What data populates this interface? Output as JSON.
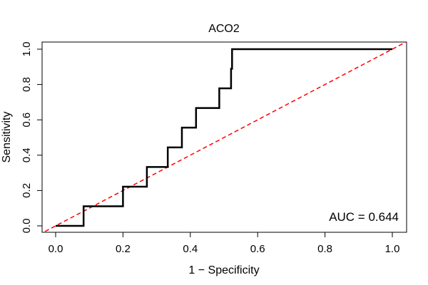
{
  "chart_data": {
    "type": "line",
    "title": "ACO2",
    "xlabel": "1 − Specificity",
    "ylabel": "Sensitivity",
    "xlim": [
      0,
      1
    ],
    "ylim": [
      0,
      1
    ],
    "x_ticks": [
      0.0,
      0.2,
      0.4,
      0.6,
      0.8,
      1.0
    ],
    "y_ticks": [
      0.0,
      0.2,
      0.4,
      0.6,
      0.8,
      1.0
    ],
    "x_tick_labels": [
      "0.0",
      "0.2",
      "0.4",
      "0.6",
      "0.8",
      "1.0"
    ],
    "y_tick_labels": [
      "0.0",
      "0.2",
      "0.4",
      "0.6",
      "0.8",
      "1.0"
    ],
    "grid": false,
    "annotation": "AUC = 0.644",
    "series": [
      {
        "color": "#000000",
        "style": "solid",
        "x": [
          0.0,
          0.083,
          0.083,
          0.2,
          0.2,
          0.271,
          0.271,
          0.333,
          0.333,
          0.375,
          0.375,
          0.417,
          0.417,
          0.486,
          0.486,
          0.521,
          0.521,
          0.524,
          0.524,
          1.0
        ],
        "y": [
          0.0,
          0.0,
          0.111,
          0.111,
          0.222,
          0.222,
          0.333,
          0.333,
          0.444,
          0.444,
          0.556,
          0.556,
          0.667,
          0.667,
          0.778,
          0.778,
          0.889,
          0.889,
          1.0,
          1.0
        ]
      },
      {
        "color": "#ff0000",
        "style": "dashed",
        "x": [
          -0.05,
          1.05
        ],
        "y": [
          -0.05,
          1.05
        ]
      }
    ]
  }
}
